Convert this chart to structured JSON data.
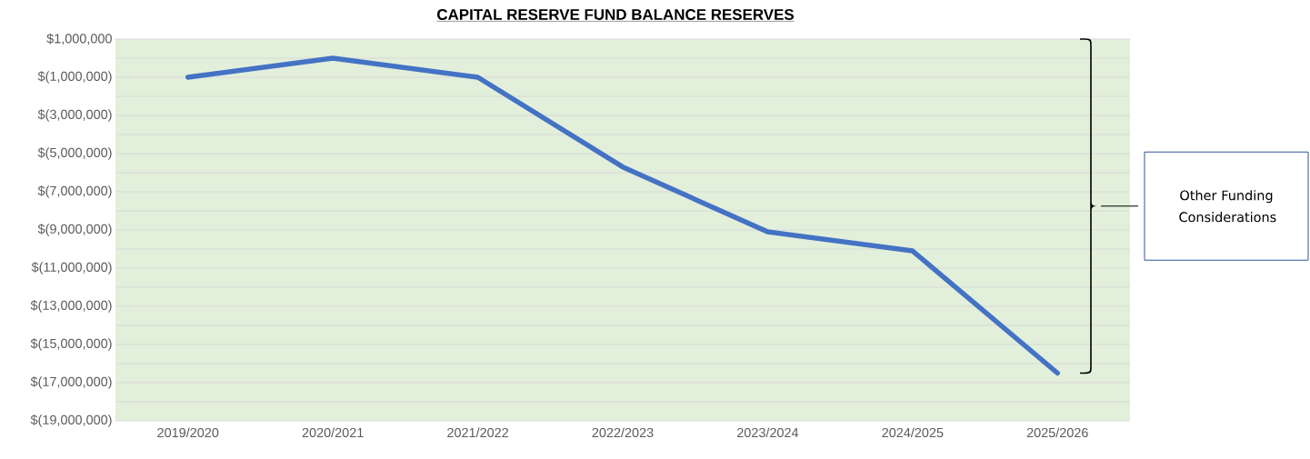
{
  "chart_data": {
    "type": "line",
    "title": "CAPITAL RESERVE FUND BALANCE RESERVES",
    "categories": [
      "2019/2020",
      "2020/2021",
      "2021/2022",
      "2022/2023",
      "2023/2024",
      "2024/2025",
      "2025/2026"
    ],
    "series": [
      {
        "color": "#4472c4",
        "values": [
          -1000000,
          0,
          -1000000,
          -5700000,
          -9100000,
          -10100000,
          -16500000
        ]
      }
    ],
    "ylim": [
      -19000000,
      1000000
    ],
    "yticks": [
      {
        "value": 1000000,
        "label": "$1,000,000"
      },
      {
        "value": 0,
        "label": null
      },
      {
        "value": -1000000,
        "label": "$(1,000,000)"
      },
      {
        "value": -2000000,
        "label": null
      },
      {
        "value": -3000000,
        "label": "$(3,000,000)"
      },
      {
        "value": -4000000,
        "label": null
      },
      {
        "value": -5000000,
        "label": "$(5,000,000)"
      },
      {
        "value": -6000000,
        "label": null
      },
      {
        "value": -7000000,
        "label": "$(7,000,000)"
      },
      {
        "value": -8000000,
        "label": null
      },
      {
        "value": -9000000,
        "label": "$(9,000,000)"
      },
      {
        "value": -10000000,
        "label": null
      },
      {
        "value": -11000000,
        "label": "$(11,000,000)"
      },
      {
        "value": -12000000,
        "label": null
      },
      {
        "value": -13000000,
        "label": "$(13,000,000)"
      },
      {
        "value": -14000000,
        "label": null
      },
      {
        "value": -15000000,
        "label": "$(15,000,000)"
      },
      {
        "value": -16000000,
        "label": null
      },
      {
        "value": -17000000,
        "label": "$(17,000,000)"
      },
      {
        "value": -18000000,
        "label": null
      },
      {
        "value": -19000000,
        "label": "$(19,000,000)"
      }
    ],
    "grid": "y",
    "marker": "none",
    "line_style": "solid",
    "annotations": [
      "Other Funding Considerations"
    ]
  }
}
